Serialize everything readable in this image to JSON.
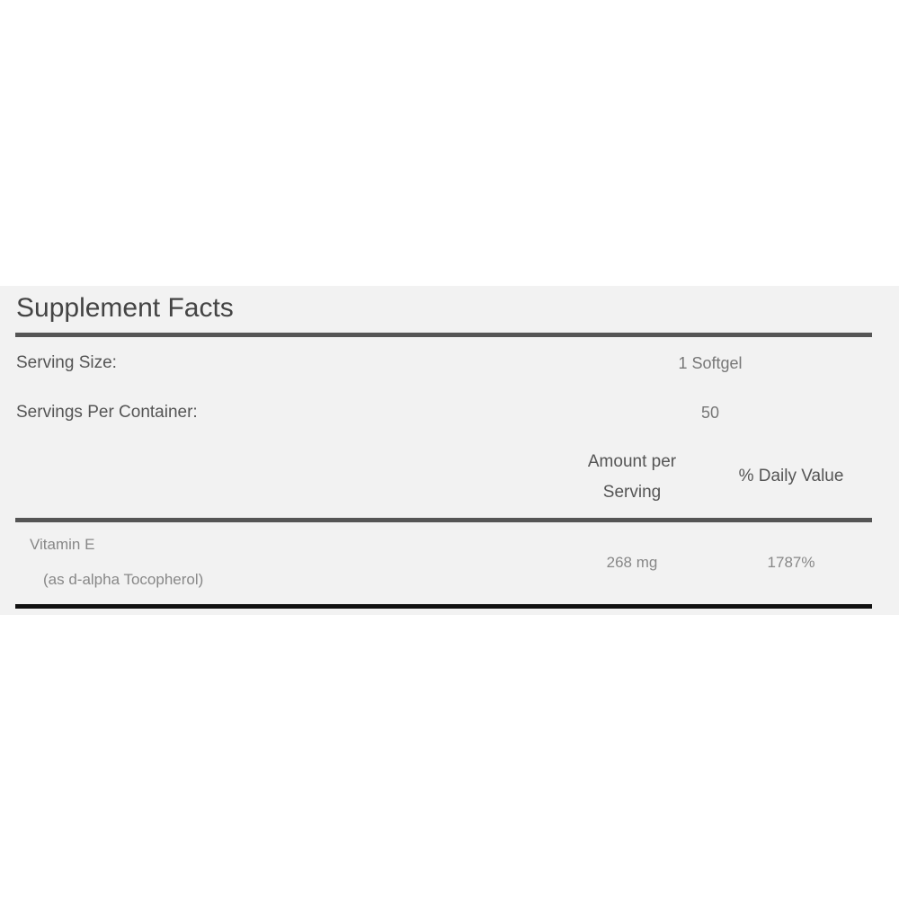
{
  "title": "Supplement Facts",
  "serving_size": {
    "label": "Serving Size:",
    "value": "1 Softgel"
  },
  "servings_per_container": {
    "label": "Servings Per Container:",
    "value": "50"
  },
  "columns": {
    "amount": "Amount per Serving",
    "daily_value": "% Daily Value"
  },
  "nutrients": [
    {
      "name": "Vitamin E",
      "detail": "(as d-alpha Tocopherol)",
      "amount": "268 mg",
      "daily_value": "1787%"
    }
  ]
}
